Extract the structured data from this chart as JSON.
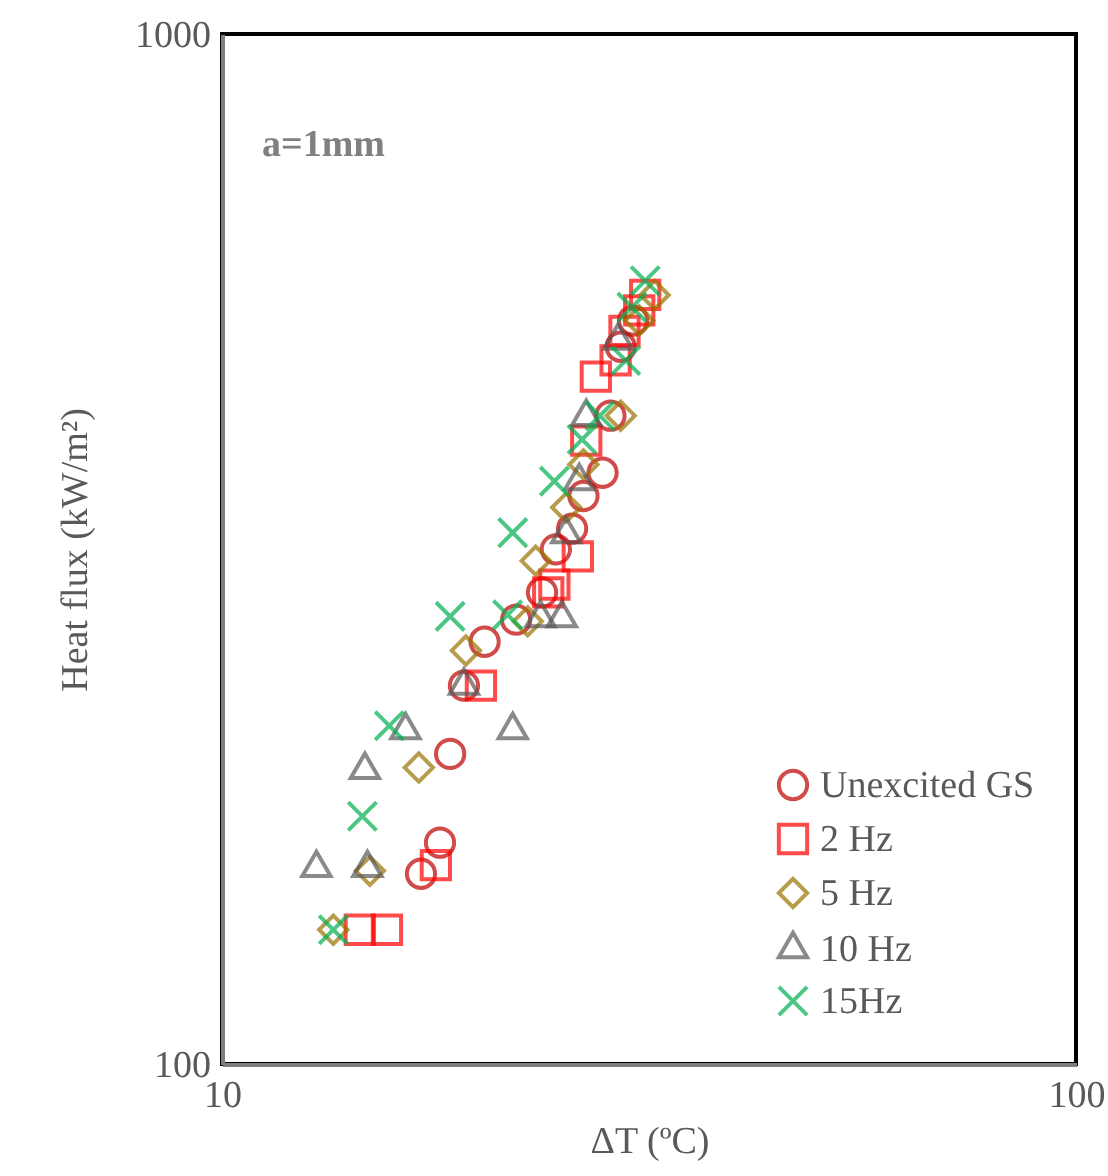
{
  "chart_data": {
    "type": "scatter",
    "xlabel": "ΔT (ºC)",
    "ylabel": "Heat flux  (kW/m²)",
    "annotations": [
      "a=1mm"
    ],
    "log": "xy",
    "xlim": [
      10,
      100
    ],
    "xticks": [
      10,
      100
    ],
    "ylim": [
      100,
      1000
    ],
    "yticks": [
      100,
      1000
    ],
    "legend": "bottom right",
    "series": [
      {
        "name": "Unexcited GS",
        "color": "#c00000",
        "marker": "circle",
        "x": [
          17.1,
          18.0,
          18.5,
          19.2,
          20.3,
          22.1,
          23.7,
          24.6,
          25.7,
          26.5,
          27.9,
          28.5,
          29.3,
          30.3
        ],
        "values": [
          153,
          164,
          200,
          233,
          257,
          270,
          287,
          316,
          331,
          356,
          375,
          426,
          497,
          527
        ]
      },
      {
        "name": "2 Hz",
        "color": "#ff0000",
        "marker": "square",
        "x": [
          14.5,
          15.6,
          17.8,
          20.1,
          24.1,
          24.5,
          26.1,
          26.7,
          27.4,
          28.9,
          29.6,
          30.8,
          31.3
        ],
        "values": [
          135,
          135,
          156,
          233,
          287,
          292,
          311,
          403,
          465,
          482,
          515,
          539,
          558
        ]
      },
      {
        "name": "5 Hz",
        "color": "#997300",
        "marker": "diamond",
        "x": [
          13.5,
          14.9,
          17.0,
          19.3,
          22.8,
          23.3,
          25.3,
          26.5,
          29.3,
          30.8,
          32.1
        ],
        "values": [
          135,
          154,
          194,
          252,
          269,
          308,
          347,
          382,
          426,
          527,
          558
        ]
      },
      {
        "name": "10 Hz",
        "color": "#595959",
        "marker": "triangle",
        "x": [
          12.9,
          14.8,
          14.7,
          16.4,
          19.2,
          21.9,
          23.6,
          25.0,
          25.3,
          26.2,
          26.7,
          29.1
        ],
        "values": [
          155,
          155,
          193,
          211,
          233,
          211,
          271,
          271,
          327,
          368,
          425,
          504
        ]
      },
      {
        "name": "15Hz",
        "color": "#00b050",
        "marker": "cross",
        "x": [
          13.5,
          14.6,
          15.7,
          18.5,
          21.6,
          21.9,
          24.5,
          26.4,
          27.7,
          29.7,
          30.2,
          31.3
        ],
        "values": [
          135,
          174,
          213,
          272,
          273,
          328,
          368,
          404,
          426,
          482,
          543,
          576
        ]
      }
    ]
  }
}
